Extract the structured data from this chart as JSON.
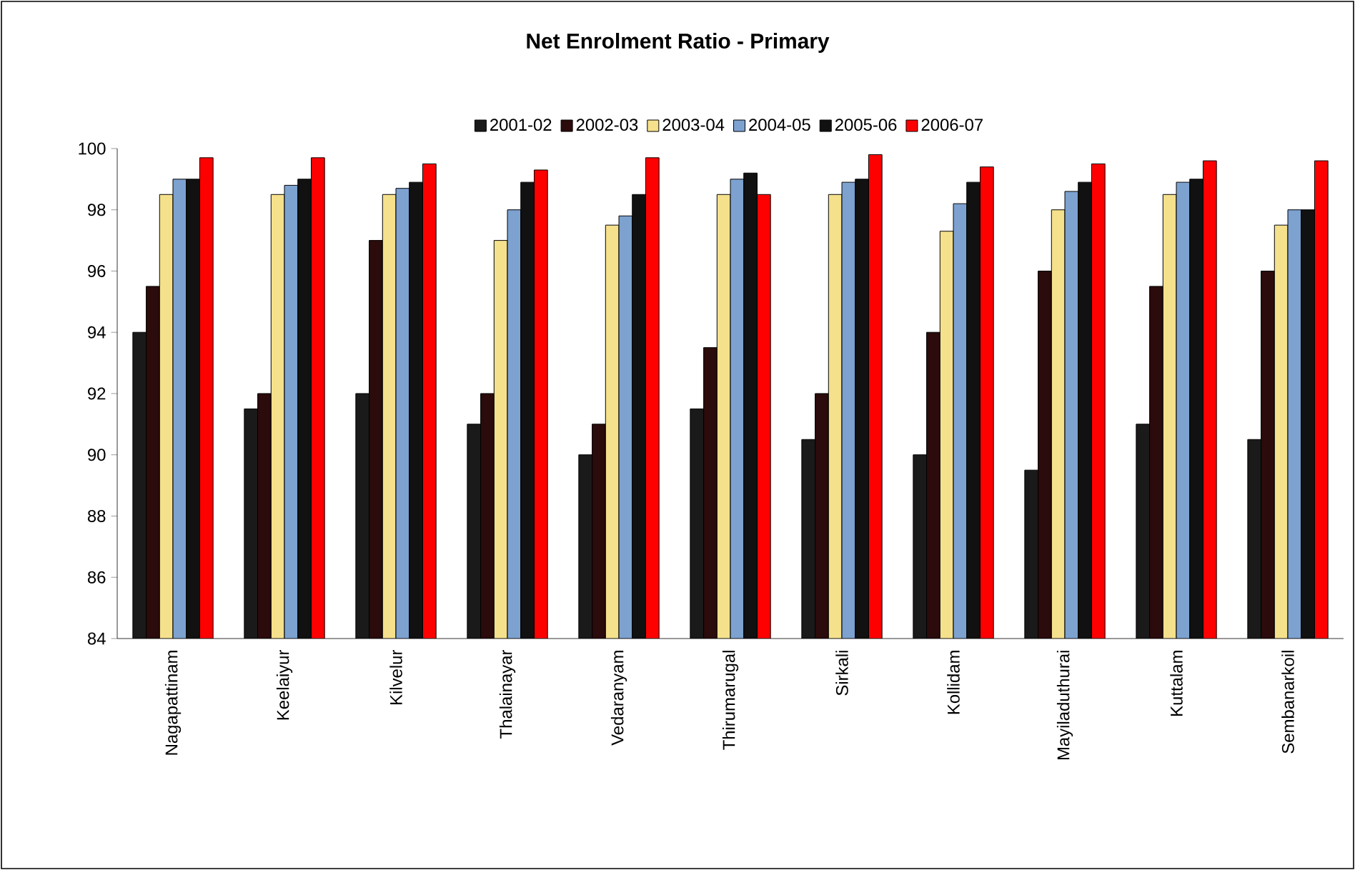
{
  "chart_data": {
    "type": "bar",
    "title": "Net Enrolment Ratio - Primary",
    "categories": [
      "Nagapattinam",
      "Keelaiyur",
      "Kilvelur",
      "Thalainayar",
      "Vedaranyam",
      "Thirumarugal",
      "Sirkali",
      "Kollidam",
      "Mayiladuthurai",
      "Kuttalam",
      "Sembanarkoil"
    ],
    "series": [
      {
        "name": "2001-02",
        "color": "#1a1a1a",
        "values": [
          94,
          91.5,
          92,
          91,
          90,
          91.5,
          90.5,
          90,
          89.5,
          91,
          90.5
        ]
      },
      {
        "name": "2002-03",
        "color": "#2b0b0b",
        "values": [
          95.5,
          92,
          97,
          92,
          91,
          93.5,
          92,
          94,
          96,
          95.5,
          96
        ]
      },
      {
        "name": "2003-04",
        "color": "#f5e08c",
        "values": [
          98.5,
          98.5,
          98.5,
          97,
          97.5,
          98.5,
          98.5,
          97.3,
          98,
          98.5,
          97.5
        ]
      },
      {
        "name": "2004-05",
        "color": "#7da2d0",
        "values": [
          99,
          98.8,
          98.7,
          98,
          97.8,
          99,
          98.9,
          98.2,
          98.6,
          98.9,
          98
        ]
      },
      {
        "name": "2005-06",
        "color": "#111111",
        "values": [
          99,
          99,
          98.9,
          98.9,
          98.5,
          99.2,
          99,
          98.9,
          98.9,
          99,
          98
        ]
      },
      {
        "name": "2006-07",
        "color": "#ff0000",
        "values": [
          99.7,
          99.7,
          99.5,
          99.3,
          99.7,
          98.5,
          99.8,
          99.4,
          99.5,
          99.6,
          99.6
        ]
      }
    ],
    "ylim": [
      84,
      100
    ],
    "yticks": [
      84,
      86,
      88,
      90,
      92,
      94,
      96,
      98,
      100
    ],
    "grid": false,
    "legend": "top"
  }
}
